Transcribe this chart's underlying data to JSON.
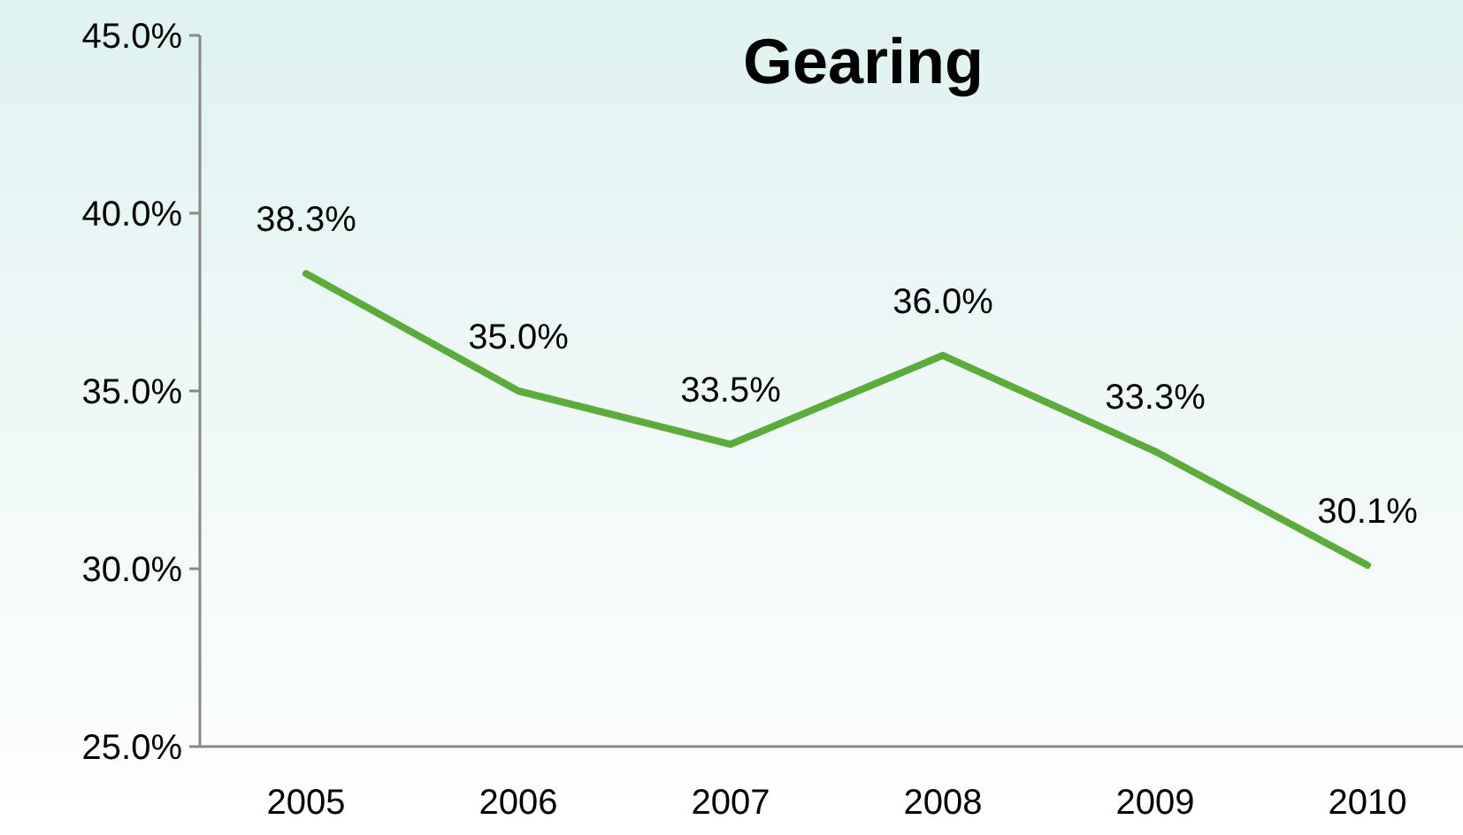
{
  "chart_data": {
    "type": "line",
    "title": "Gearing",
    "categories": [
      "2005",
      "2006",
      "2007",
      "2008",
      "2009",
      "2010"
    ],
    "series": [
      {
        "color": "#5aad38",
        "values": [
          38.3,
          35.0,
          33.5,
          36.0,
          33.3,
          30.1
        ],
        "value_labels": [
          "38.3%",
          "35.0%",
          "33.5%",
          "36.0%",
          "33.3%",
          "30.1%"
        ]
      }
    ],
    "ylim": [
      25,
      45
    ],
    "yticks": [
      {
        "value": 25,
        "label": "25.0%"
      },
      {
        "value": 30,
        "label": "30.0%"
      },
      {
        "value": 35,
        "label": "35.0%"
      },
      {
        "value": 40,
        "label": "40.0%"
      },
      {
        "value": 45,
        "label": "45.0%"
      }
    ],
    "marker": "none",
    "line_style": "solid"
  }
}
